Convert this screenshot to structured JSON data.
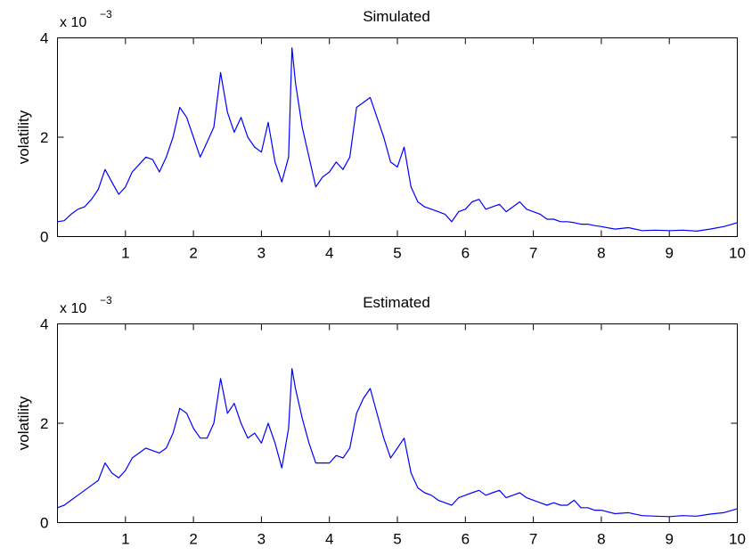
{
  "chart_data": [
    {
      "type": "line",
      "title": "Simulated",
      "xlabel": "",
      "ylabel": "volatility",
      "y_multiplier_base": "x 10",
      "y_multiplier_exp": "−3",
      "xlim": [
        0,
        10
      ],
      "ylim": [
        0,
        4
      ],
      "xticks": [
        1,
        2,
        3,
        4,
        5,
        6,
        7,
        8,
        9,
        10
      ],
      "yticks": [
        0,
        2,
        4
      ],
      "grid": false,
      "color": "#0000ff",
      "series": [
        {
          "x": [
            0,
            0.1,
            0.2,
            0.3,
            0.4,
            0.5,
            0.6,
            0.7,
            0.8,
            0.9,
            1.0,
            1.1,
            1.2,
            1.3,
            1.4,
            1.5,
            1.6,
            1.7,
            1.8,
            1.9,
            2.0,
            2.1,
            2.2,
            2.3,
            2.4,
            2.5,
            2.6,
            2.7,
            2.8,
            2.9,
            3.0,
            3.1,
            3.2,
            3.3,
            3.4,
            3.45,
            3.5,
            3.6,
            3.7,
            3.8,
            3.9,
            4.0,
            4.1,
            4.2,
            4.3,
            4.4,
            4.5,
            4.6,
            4.7,
            4.8,
            4.9,
            5.0,
            5.1,
            5.2,
            5.3,
            5.4,
            5.5,
            5.6,
            5.7,
            5.8,
            5.9,
            6.0,
            6.1,
            6.2,
            6.3,
            6.4,
            6.5,
            6.6,
            6.7,
            6.8,
            6.9,
            7.0,
            7.1,
            7.2,
            7.3,
            7.4,
            7.5,
            7.6,
            7.7,
            7.8,
            7.9,
            8.0,
            8.2,
            8.4,
            8.6,
            8.8,
            9.0,
            9.2,
            9.4,
            9.6,
            9.8,
            10.0
          ],
          "y": [
            0.3,
            0.32,
            0.45,
            0.55,
            0.6,
            0.75,
            0.95,
            1.35,
            1.1,
            0.85,
            1.0,
            1.3,
            1.45,
            1.6,
            1.55,
            1.3,
            1.6,
            2.0,
            2.6,
            2.4,
            2.0,
            1.6,
            1.9,
            2.2,
            3.3,
            2.5,
            2.1,
            2.4,
            2.0,
            1.8,
            1.7,
            2.3,
            1.5,
            1.1,
            1.6,
            3.8,
            3.1,
            2.2,
            1.6,
            1.0,
            1.2,
            1.3,
            1.5,
            1.35,
            1.6,
            2.6,
            2.7,
            2.8,
            2.4,
            2.0,
            1.5,
            1.4,
            1.8,
            1.0,
            0.7,
            0.6,
            0.55,
            0.5,
            0.45,
            0.3,
            0.5,
            0.55,
            0.7,
            0.75,
            0.55,
            0.6,
            0.65,
            0.5,
            0.6,
            0.7,
            0.55,
            0.5,
            0.45,
            0.35,
            0.35,
            0.3,
            0.3,
            0.28,
            0.25,
            0.25,
            0.22,
            0.2,
            0.15,
            0.18,
            0.12,
            0.13,
            0.12,
            0.13,
            0.11,
            0.15,
            0.2,
            0.28
          ]
        }
      ]
    },
    {
      "type": "line",
      "title": "Estimated",
      "xlabel": "",
      "ylabel": "volatility",
      "y_multiplier_base": "x 10",
      "y_multiplier_exp": "−3",
      "xlim": [
        0,
        10
      ],
      "ylim": [
        0,
        4
      ],
      "xticks": [
        1,
        2,
        3,
        4,
        5,
        6,
        7,
        8,
        9,
        10
      ],
      "yticks": [
        0,
        2,
        4
      ],
      "grid": false,
      "color": "#0000ff",
      "series": [
        {
          "x": [
            0,
            0.1,
            0.2,
            0.3,
            0.4,
            0.5,
            0.6,
            0.7,
            0.8,
            0.9,
            1.0,
            1.1,
            1.2,
            1.3,
            1.4,
            1.5,
            1.6,
            1.7,
            1.8,
            1.9,
            2.0,
            2.1,
            2.2,
            2.3,
            2.4,
            2.5,
            2.6,
            2.7,
            2.8,
            2.9,
            3.0,
            3.1,
            3.2,
            3.3,
            3.4,
            3.45,
            3.5,
            3.6,
            3.7,
            3.8,
            3.9,
            4.0,
            4.1,
            4.2,
            4.3,
            4.4,
            4.5,
            4.6,
            4.7,
            4.8,
            4.9,
            5.0,
            5.1,
            5.2,
            5.3,
            5.4,
            5.5,
            5.6,
            5.7,
            5.8,
            5.9,
            6.0,
            6.1,
            6.2,
            6.3,
            6.4,
            6.5,
            6.6,
            6.7,
            6.8,
            6.9,
            7.0,
            7.1,
            7.2,
            7.3,
            7.4,
            7.5,
            7.6,
            7.7,
            7.8,
            7.9,
            8.0,
            8.2,
            8.4,
            8.6,
            8.8,
            9.0,
            9.2,
            9.4,
            9.6,
            9.8,
            10.0
          ],
          "y": [
            0.3,
            0.35,
            0.45,
            0.55,
            0.65,
            0.75,
            0.85,
            1.2,
            1.0,
            0.9,
            1.05,
            1.3,
            1.4,
            1.5,
            1.45,
            1.4,
            1.5,
            1.8,
            2.3,
            2.2,
            1.9,
            1.7,
            1.7,
            2.0,
            2.9,
            2.2,
            2.4,
            2.0,
            1.7,
            1.8,
            1.6,
            2.0,
            1.6,
            1.1,
            1.9,
            3.1,
            2.7,
            2.1,
            1.6,
            1.2,
            1.2,
            1.2,
            1.35,
            1.3,
            1.5,
            2.2,
            2.5,
            2.7,
            2.2,
            1.7,
            1.3,
            1.5,
            1.7,
            1.0,
            0.7,
            0.6,
            0.55,
            0.45,
            0.4,
            0.35,
            0.5,
            0.55,
            0.6,
            0.65,
            0.55,
            0.6,
            0.65,
            0.5,
            0.55,
            0.6,
            0.5,
            0.45,
            0.4,
            0.35,
            0.4,
            0.35,
            0.35,
            0.45,
            0.3,
            0.3,
            0.25,
            0.25,
            0.18,
            0.2,
            0.14,
            0.13,
            0.12,
            0.14,
            0.13,
            0.17,
            0.2,
            0.28
          ]
        }
      ]
    }
  ]
}
